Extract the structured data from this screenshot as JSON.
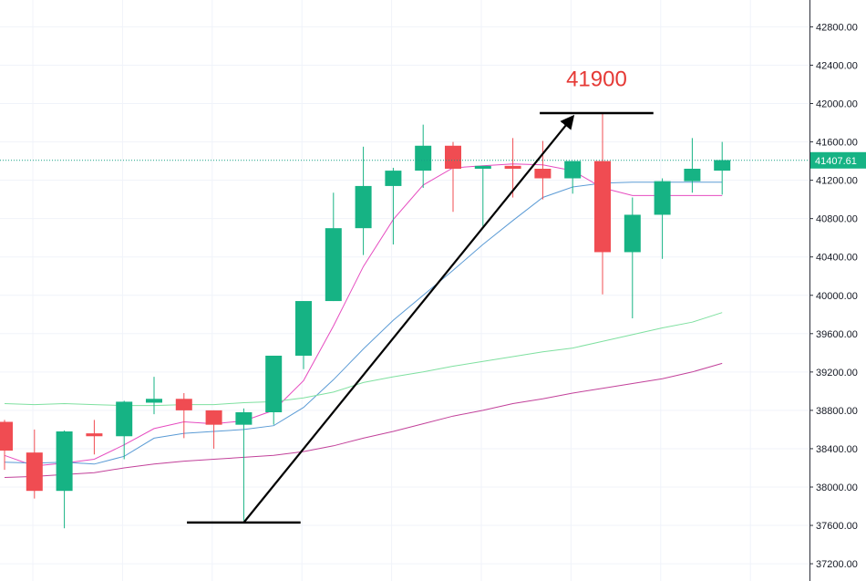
{
  "chart_data": {
    "type": "candlestick",
    "y_axis": {
      "position": "right",
      "ticks": [
        "37200.00",
        "37600.00",
        "38000.00",
        "38400.00",
        "38800.00",
        "39200.00",
        "39600.00",
        "40000.00",
        "40400.00",
        "40800.00",
        "41200.00",
        "41600.00",
        "42000.00",
        "42400.00",
        "42800.00"
      ],
      "ylim": [
        37020,
        43080
      ]
    },
    "grid": true,
    "current_price": {
      "value": 41407.61,
      "label": "41407.61"
    },
    "colors": {
      "up": "#26a69a",
      "down": "#ef5350",
      "up_fill": "#16b384",
      "down_fill": "#f04c52",
      "ma_fast": "#e64cc0",
      "ma_mid": "#5b9bd5",
      "ma_slow1": "#7fe0a0",
      "ma_slow2": "#c2419a",
      "price_line": "#16a085",
      "annotation": "#e53935"
    },
    "candles": [
      {
        "o": 38680,
        "h": 38700,
        "l": 38180,
        "c": 38380
      },
      {
        "o": 38360,
        "h": 38600,
        "l": 37880,
        "c": 37960
      },
      {
        "o": 37960,
        "h": 38590,
        "l": 37570,
        "c": 38580
      },
      {
        "o": 38560,
        "h": 38700,
        "l": 38340,
        "c": 38530
      },
      {
        "o": 38530,
        "h": 38900,
        "l": 38290,
        "c": 38890
      },
      {
        "o": 38880,
        "h": 39150,
        "l": 38760,
        "c": 38920
      },
      {
        "o": 38920,
        "h": 38980,
        "l": 38510,
        "c": 38800
      },
      {
        "o": 38800,
        "h": 38800,
        "l": 38400,
        "c": 38650
      },
      {
        "o": 38650,
        "h": 38820,
        "l": 37650,
        "c": 38780
      },
      {
        "o": 38780,
        "h": 39370,
        "l": 38650,
        "c": 39370
      },
      {
        "o": 39370,
        "h": 39940,
        "l": 39230,
        "c": 39940
      },
      {
        "o": 39940,
        "h": 41070,
        "l": 39940,
        "c": 40700
      },
      {
        "o": 40700,
        "h": 41550,
        "l": 40420,
        "c": 41140
      },
      {
        "o": 41140,
        "h": 41330,
        "l": 40530,
        "c": 41300
      },
      {
        "o": 41300,
        "h": 41780,
        "l": 41120,
        "c": 41560
      },
      {
        "o": 41560,
        "h": 41600,
        "l": 40870,
        "c": 41320
      },
      {
        "o": 41320,
        "h": 41350,
        "l": 40720,
        "c": 41350
      },
      {
        "o": 41350,
        "h": 41640,
        "l": 41020,
        "c": 41320
      },
      {
        "o": 41320,
        "h": 41610,
        "l": 41000,
        "c": 41220
      },
      {
        "o": 41220,
        "h": 41400,
        "l": 41060,
        "c": 41400
      },
      {
        "o": 41400,
        "h": 41900,
        "l": 40010,
        "c": 40450
      },
      {
        "o": 40450,
        "h": 41020,
        "l": 39760,
        "c": 40840
      },
      {
        "o": 40840,
        "h": 41220,
        "l": 40380,
        "c": 41190
      },
      {
        "o": 41190,
        "h": 41640,
        "l": 41070,
        "c": 41320
      },
      {
        "o": 41300,
        "h": 41600,
        "l": 41050,
        "c": 41410
      }
    ],
    "moving_averages": [
      {
        "id": "ma_fast",
        "values": [
          38330,
          38220,
          38250,
          38290,
          38440,
          38610,
          38680,
          38660,
          38690,
          38800,
          39110,
          39680,
          40300,
          40790,
          41150,
          41330,
          41350,
          41370,
          41360,
          41300,
          41120,
          41040,
          41040,
          41040,
          41040
        ]
      },
      {
        "id": "ma_mid",
        "values": [
          38260,
          38250,
          38260,
          38240,
          38320,
          38510,
          38560,
          38580,
          38600,
          38640,
          38830,
          39120,
          39440,
          39740,
          40000,
          40260,
          40530,
          40780,
          41020,
          41130,
          41170,
          41180,
          41180,
          41180,
          41180
        ]
      },
      {
        "id": "ma_slow1",
        "values": [
          38870,
          38860,
          38870,
          38860,
          38850,
          38850,
          38860,
          38860,
          38880,
          38890,
          38930,
          38990,
          39090,
          39150,
          39200,
          39260,
          39310,
          39360,
          39410,
          39450,
          39520,
          39590,
          39660,
          39720,
          39820
        ]
      },
      {
        "id": "ma_slow2",
        "values": [
          38100,
          38110,
          38130,
          38150,
          38200,
          38240,
          38270,
          38290,
          38310,
          38330,
          38370,
          38430,
          38510,
          38580,
          38660,
          38740,
          38800,
          38870,
          38920,
          38980,
          39030,
          39080,
          39130,
          39200,
          39290
        ]
      }
    ],
    "annotations": [
      {
        "type": "trend-arrow",
        "from": {
          "x": 8,
          "y": 37630
        },
        "to": {
          "x": 19,
          "y": 41860
        }
      },
      {
        "type": "hline",
        "x_from": 6.1,
        "x_to": 9.9,
        "y": 37630
      },
      {
        "type": "hline",
        "x_from": 17.9,
        "x_to": 21.7,
        "y": 41900
      },
      {
        "type": "text",
        "text": "41900",
        "x": 19.8,
        "y": 42180
      }
    ]
  }
}
